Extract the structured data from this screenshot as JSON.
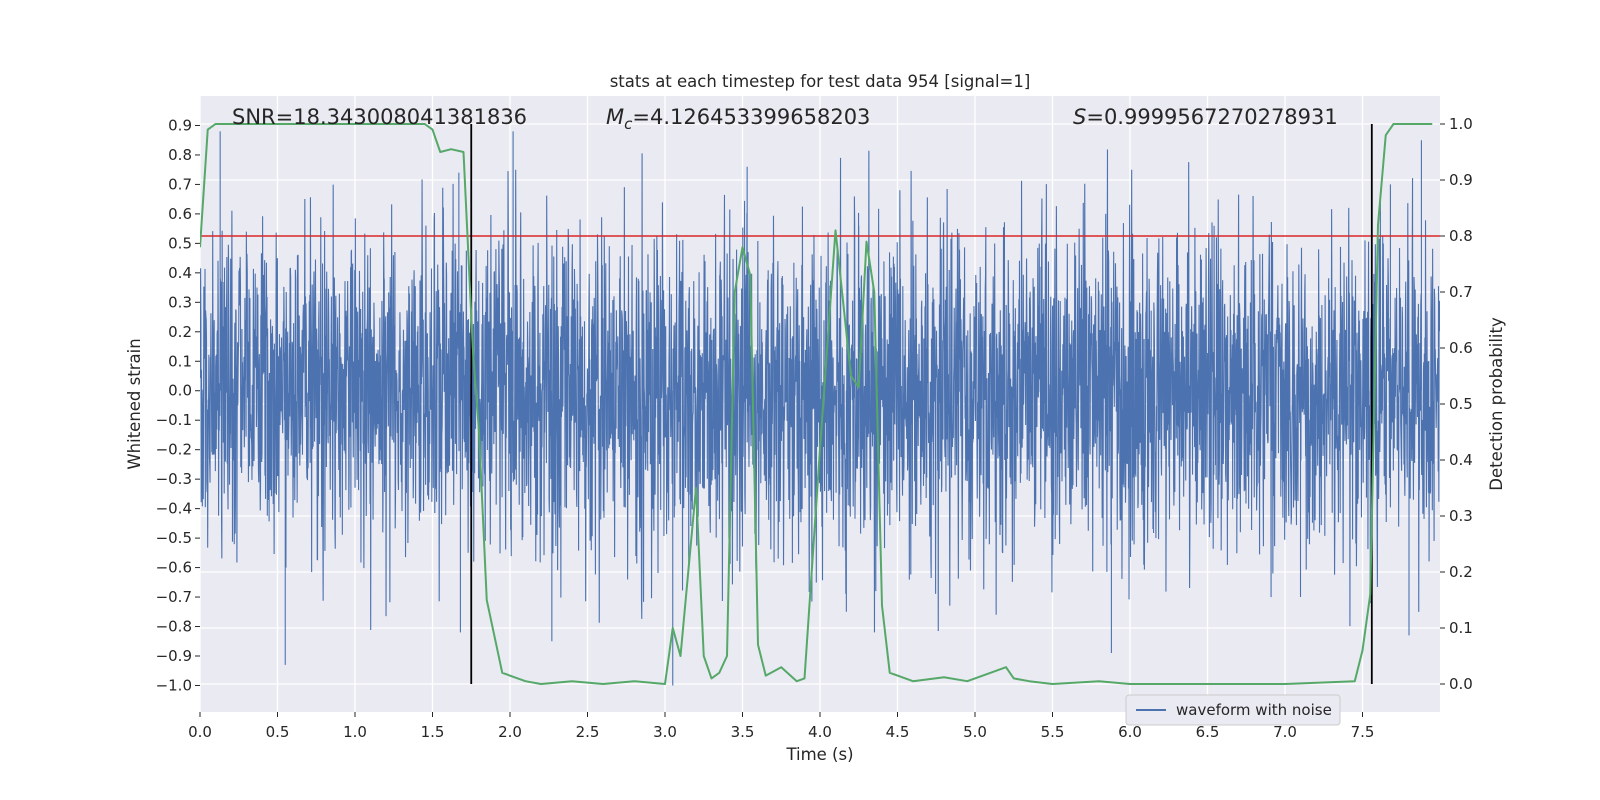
{
  "chart_data": {
    "type": "line",
    "title": "stats at each timestep for test data 954 [signal=1]",
    "xlabel": "Time (s)",
    "ylabel": "Whitened strain",
    "y2label": "Detection probability",
    "xlim": [
      0,
      8
    ],
    "ylim": [
      -1.09,
      1.0
    ],
    "y2lim": [
      -0.05,
      1.05
    ],
    "x_ticks": [
      "0.0",
      "0.5",
      "1.0",
      "1.5",
      "2.0",
      "2.5",
      "3.0",
      "3.5",
      "4.0",
      "4.5",
      "5.0",
      "5.5",
      "6.0",
      "6.5",
      "7.0",
      "7.5"
    ],
    "y_ticks": [
      "−1.0",
      "−0.9",
      "−0.8",
      "−0.7",
      "−0.6",
      "−0.5",
      "−0.4",
      "−0.3",
      "−0.2",
      "−0.1",
      "0.0",
      "0.1",
      "0.2",
      "0.3",
      "0.4",
      "0.5",
      "0.6",
      "0.7",
      "0.8",
      "0.9"
    ],
    "y2_ticks": [
      "0.0",
      "0.1",
      "0.2",
      "0.3",
      "0.4",
      "0.5",
      "0.6",
      "0.7",
      "0.8",
      "0.9",
      "1.0"
    ],
    "grid": true,
    "threshold": {
      "y2": 0.8,
      "color": "#d62728"
    },
    "signal_bounds": {
      "x": [
        1.75,
        7.56
      ],
      "y2_range": [
        0.0,
        1.0
      ]
    },
    "annotations": {
      "snr": "SNR=18.343008041381836",
      "mc_symbol": "M",
      "mc_sub": "c",
      "mc_value": "=4.126453399658203",
      "s_symbol": "S",
      "s_value": "=0.9999567270278931"
    },
    "legend": {
      "placement": "lower-right",
      "entries": [
        "waveform with noise"
      ]
    },
    "series": [
      {
        "name": "waveform with noise",
        "color": "#4c72b0",
        "axis": "left",
        "kind": "noise",
        "amplitude_rms": 0.27,
        "peaks": [
          [
            0.55,
            -0.93
          ],
          [
            0.13,
            0.88
          ],
          [
            1.67,
            0.74
          ],
          [
            1.68,
            -0.82
          ],
          [
            2.02,
            0.88
          ],
          [
            2.27,
            -0.85
          ],
          [
            3.05,
            -1.0
          ],
          [
            3.53,
            0.76
          ],
          [
            4.17,
            -0.75
          ],
          [
            4.25,
            0.56
          ],
          [
            4.36,
            -0.68
          ],
          [
            4.48,
            0.42
          ],
          [
            5.88,
            -0.89
          ],
          [
            7.1,
            -0.7
          ],
          [
            7.55,
            -0.72
          ],
          [
            7.68,
            0.7
          ],
          [
            7.8,
            -0.83
          ],
          [
            7.88,
            0.85
          ]
        ]
      },
      {
        "color": "#55a868",
        "axis": "right",
        "x": [
          0.0,
          0.05,
          0.1,
          0.2,
          0.5,
          1.0,
          1.45,
          1.5,
          1.55,
          1.62,
          1.7,
          1.76,
          1.8,
          1.85,
          1.95,
          2.05,
          2.1,
          2.2,
          2.4,
          2.6,
          2.8,
          3.0,
          3.05,
          3.1,
          3.2,
          3.25,
          3.3,
          3.35,
          3.4,
          3.45,
          3.5,
          3.55,
          3.6,
          3.65,
          3.75,
          3.85,
          3.9,
          4.0,
          4.1,
          4.2,
          4.25,
          4.3,
          4.35,
          4.4,
          4.45,
          4.5,
          4.6,
          4.8,
          4.95,
          5.1,
          5.2,
          5.25,
          5.35,
          5.5,
          5.8,
          6.0,
          6.2,
          6.6,
          7.0,
          7.45,
          7.5,
          7.55,
          7.6,
          7.65,
          7.7,
          7.85,
          7.95
        ],
        "y": [
          0.78,
          0.99,
          1.0,
          1.0,
          1.0,
          1.0,
          1.0,
          0.99,
          0.95,
          0.955,
          0.95,
          0.6,
          0.45,
          0.15,
          0.02,
          0.01,
          0.005,
          0.0,
          0.005,
          0.0,
          0.005,
          0.0,
          0.1,
          0.05,
          0.35,
          0.05,
          0.01,
          0.02,
          0.05,
          0.7,
          0.78,
          0.73,
          0.07,
          0.015,
          0.03,
          0.005,
          0.01,
          0.42,
          0.81,
          0.55,
          0.53,
          0.79,
          0.7,
          0.14,
          0.02,
          0.015,
          0.005,
          0.012,
          0.005,
          0.02,
          0.03,
          0.01,
          0.005,
          0.0,
          0.005,
          0.0,
          0.0,
          0.0,
          0.0,
          0.005,
          0.06,
          0.16,
          0.82,
          0.98,
          1.0,
          1.0,
          1.0
        ]
      }
    ]
  }
}
